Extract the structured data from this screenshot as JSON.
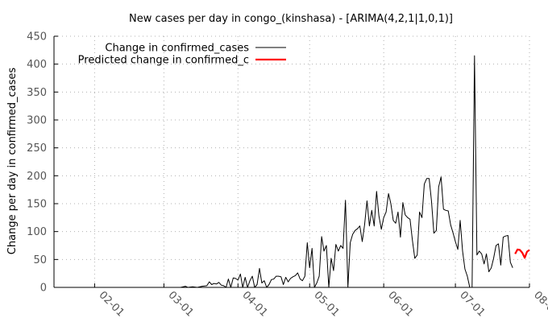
{
  "chart_data": {
    "type": "line",
    "title": "New cases per day in congo_(kinshasa) -  [ARIMA(4,2,1|1,0,1)]",
    "xlabel": "",
    "ylabel": "Change per day in confirmed_cases",
    "ylim": [
      0,
      450
    ],
    "yticks": [
      0,
      50,
      100,
      150,
      200,
      250,
      300,
      350,
      400,
      450
    ],
    "xlim": [
      "2020-01-15",
      "2020-08-01"
    ],
    "xticks": [
      {
        "date": "2020-02-01",
        "label": "02-01"
      },
      {
        "date": "2020-03-01",
        "label": "03-01"
      },
      {
        "date": "2020-04-01",
        "label": "04-01"
      },
      {
        "date": "2020-05-01",
        "label": "05-01"
      },
      {
        "date": "2020-06-01",
        "label": "06-01"
      },
      {
        "date": "2020-07-01",
        "label": "07-01"
      },
      {
        "date": "2020-08-01",
        "label": "08-01"
      }
    ],
    "grid": true,
    "legend_position": "top-left",
    "series": [
      {
        "name": "Change in confirmed_cases",
        "color": "#000000",
        "points": [
          [
            "2020-01-17",
            0
          ],
          [
            "2020-01-31",
            0
          ],
          [
            "2020-02-14",
            0
          ],
          [
            "2020-02-28",
            0
          ],
          [
            "2020-03-08",
            0
          ],
          [
            "2020-03-10",
            2
          ],
          [
            "2020-03-11",
            0
          ],
          [
            "2020-03-13",
            1
          ],
          [
            "2020-03-15",
            0
          ],
          [
            "2020-03-17",
            2
          ],
          [
            "2020-03-19",
            3
          ],
          [
            "2020-03-20",
            10
          ],
          [
            "2020-03-21",
            5
          ],
          [
            "2020-03-22",
            7
          ],
          [
            "2020-03-23",
            6
          ],
          [
            "2020-03-24",
            9
          ],
          [
            "2020-03-25",
            4
          ],
          [
            "2020-03-26",
            3
          ],
          [
            "2020-03-27",
            0
          ],
          [
            "2020-03-28",
            15
          ],
          [
            "2020-03-29",
            0
          ],
          [
            "2020-03-30",
            17
          ],
          [
            "2020-03-31",
            16
          ],
          [
            "2020-04-01",
            13
          ],
          [
            "2020-04-02",
            24
          ],
          [
            "2020-04-03",
            0
          ],
          [
            "2020-04-04",
            18
          ],
          [
            "2020-04-05",
            0
          ],
          [
            "2020-04-06",
            12
          ],
          [
            "2020-04-07",
            20
          ],
          [
            "2020-04-08",
            0
          ],
          [
            "2020-04-09",
            5
          ],
          [
            "2020-04-10",
            34
          ],
          [
            "2020-04-11",
            8
          ],
          [
            "2020-04-12",
            12
          ],
          [
            "2020-04-13",
            0
          ],
          [
            "2020-04-14",
            5
          ],
          [
            "2020-04-15",
            14
          ],
          [
            "2020-04-16",
            15
          ],
          [
            "2020-04-17",
            20
          ],
          [
            "2020-04-18",
            20
          ],
          [
            "2020-04-19",
            19
          ],
          [
            "2020-04-20",
            5
          ],
          [
            "2020-04-21",
            18
          ],
          [
            "2020-04-22",
            10
          ],
          [
            "2020-04-23",
            16
          ],
          [
            "2020-04-24",
            19
          ],
          [
            "2020-04-25",
            21
          ],
          [
            "2020-04-26",
            26
          ],
          [
            "2020-04-27",
            15
          ],
          [
            "2020-04-28",
            12
          ],
          [
            "2020-04-29",
            20
          ],
          [
            "2020-04-30",
            80
          ],
          [
            "2020-05-01",
            35
          ],
          [
            "2020-05-02",
            70
          ],
          [
            "2020-05-03",
            0
          ],
          [
            "2020-05-04",
            8
          ],
          [
            "2020-05-05",
            20
          ],
          [
            "2020-05-06",
            91
          ],
          [
            "2020-05-07",
            65
          ],
          [
            "2020-05-08",
            75
          ],
          [
            "2020-05-09",
            0
          ],
          [
            "2020-05-10",
            52
          ],
          [
            "2020-05-11",
            30
          ],
          [
            "2020-05-12",
            77
          ],
          [
            "2020-05-13",
            65
          ],
          [
            "2020-05-14",
            75
          ],
          [
            "2020-05-15",
            70
          ],
          [
            "2020-05-16",
            156
          ],
          [
            "2020-05-17",
            0
          ],
          [
            "2020-05-18",
            80
          ],
          [
            "2020-05-19",
            95
          ],
          [
            "2020-05-20",
            102
          ],
          [
            "2020-05-21",
            105
          ],
          [
            "2020-05-22",
            110
          ],
          [
            "2020-05-23",
            82
          ],
          [
            "2020-05-24",
            112
          ],
          [
            "2020-05-25",
            155
          ],
          [
            "2020-05-26",
            110
          ],
          [
            "2020-05-27",
            138
          ],
          [
            "2020-05-28",
            110
          ],
          [
            "2020-05-29",
            172
          ],
          [
            "2020-05-30",
            128
          ],
          [
            "2020-05-31",
            104
          ],
          [
            "2020-06-01",
            125
          ],
          [
            "2020-06-02",
            135
          ],
          [
            "2020-06-03",
            168
          ],
          [
            "2020-06-04",
            150
          ],
          [
            "2020-06-05",
            120
          ],
          [
            "2020-06-06",
            115
          ],
          [
            "2020-06-07",
            135
          ],
          [
            "2020-06-08",
            90
          ],
          [
            "2020-06-09",
            152
          ],
          [
            "2020-06-10",
            130
          ],
          [
            "2020-06-11",
            125
          ],
          [
            "2020-06-12",
            122
          ],
          [
            "2020-06-13",
            85
          ],
          [
            "2020-06-14",
            52
          ],
          [
            "2020-06-15",
            58
          ],
          [
            "2020-06-16",
            135
          ],
          [
            "2020-06-17",
            125
          ],
          [
            "2020-06-18",
            185
          ],
          [
            "2020-06-19",
            195
          ],
          [
            "2020-06-20",
            195
          ],
          [
            "2020-06-21",
            155
          ],
          [
            "2020-06-22",
            97
          ],
          [
            "2020-06-23",
            102
          ],
          [
            "2020-06-24",
            180
          ],
          [
            "2020-06-25",
            198
          ],
          [
            "2020-06-26",
            140
          ],
          [
            "2020-06-27",
            138
          ],
          [
            "2020-06-28",
            137
          ],
          [
            "2020-06-29",
            112
          ],
          [
            "2020-06-30",
            98
          ],
          [
            "2020-07-01",
            82
          ],
          [
            "2020-07-02",
            68
          ],
          [
            "2020-07-03",
            120
          ],
          [
            "2020-07-04",
            65
          ],
          [
            "2020-07-05",
            33
          ],
          [
            "2020-07-06",
            20
          ],
          [
            "2020-07-07",
            0
          ],
          [
            "2020-07-08",
            0
          ],
          [
            "2020-07-09",
            415
          ],
          [
            "2020-07-10",
            58
          ],
          [
            "2020-07-11",
            65
          ],
          [
            "2020-07-12",
            60
          ],
          [
            "2020-07-13",
            42
          ],
          [
            "2020-07-14",
            60
          ],
          [
            "2020-07-15",
            28
          ],
          [
            "2020-07-16",
            35
          ],
          [
            "2020-07-17",
            52
          ],
          [
            "2020-07-18",
            75
          ],
          [
            "2020-07-19",
            78
          ],
          [
            "2020-07-20",
            40
          ],
          [
            "2020-07-21",
            90
          ],
          [
            "2020-07-22",
            92
          ],
          [
            "2020-07-23",
            93
          ],
          [
            "2020-07-24",
            45
          ],
          [
            "2020-07-25",
            35
          ]
        ]
      },
      {
        "name": "Predicted change in confirmed_c",
        "color": "#ff0000",
        "points": [
          [
            "2020-07-26",
            60
          ],
          [
            "2020-07-27",
            68
          ],
          [
            "2020-07-28",
            67
          ],
          [
            "2020-07-29",
            62
          ],
          [
            "2020-07-30",
            53
          ],
          [
            "2020-07-31",
            64
          ],
          [
            "2020-08-01",
            67
          ]
        ]
      }
    ]
  }
}
